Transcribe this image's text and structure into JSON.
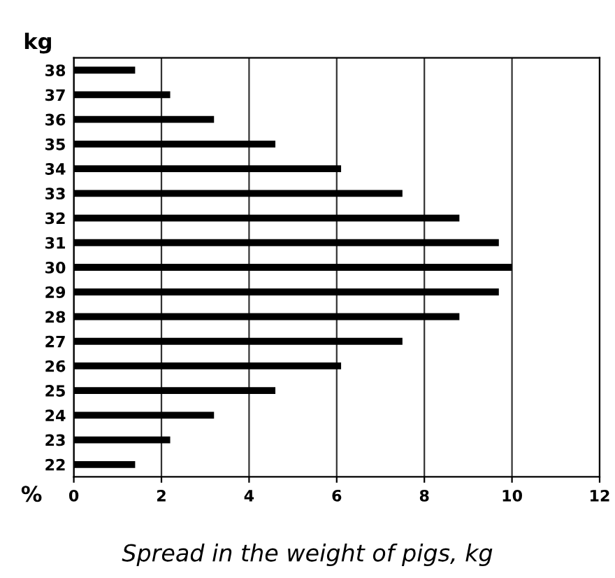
{
  "chart_data": {
    "type": "bar",
    "orientation": "horizontal",
    "title": "Spread in the weight of pigs, kg",
    "xlabel": "%",
    "ylabel": "kg",
    "categories": [
      "38",
      "37",
      "36",
      "35",
      "34",
      "33",
      "32",
      "31",
      "30",
      "29",
      "28",
      "27",
      "26",
      "25",
      "24",
      "23",
      "22"
    ],
    "values": [
      1.4,
      2.2,
      3.2,
      4.6,
      6.1,
      7.5,
      8.8,
      9.7,
      10,
      9.7,
      8.8,
      7.5,
      6.1,
      4.6,
      3.2,
      2.2,
      1.4
    ],
    "color": "#000000",
    "xlim": [
      0,
      12
    ],
    "xticks": [
      0,
      2,
      4,
      6,
      8,
      10,
      12
    ],
    "grid": "x",
    "legend": false
  }
}
